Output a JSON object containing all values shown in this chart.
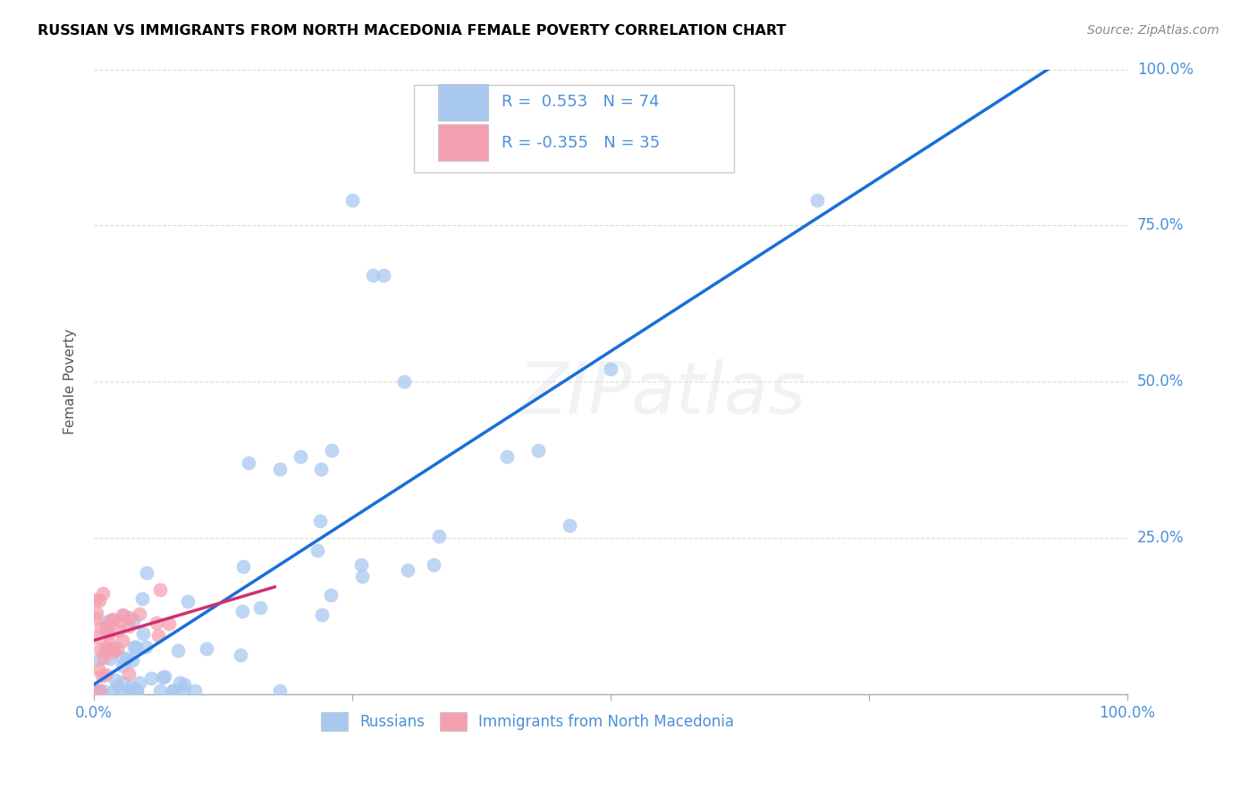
{
  "title": "RUSSIAN VS IMMIGRANTS FROM NORTH MACEDONIA FEMALE POVERTY CORRELATION CHART",
  "source": "Source: ZipAtlas.com",
  "ylabel": "Female Poverty",
  "watermark": "ZIPatlas",
  "color_russian": "#A8C8F0",
  "color_macedonia": "#F5A0B0",
  "color_line_russian": "#1A6ED8",
  "color_line_macedonia": "#D03070",
  "background_color": "#FFFFFF",
  "grid_color": "#CCCCCC",
  "title_color": "#000000",
  "source_color": "#888888",
  "tick_color": "#4A90D9",
  "ylabel_color": "#555555"
}
